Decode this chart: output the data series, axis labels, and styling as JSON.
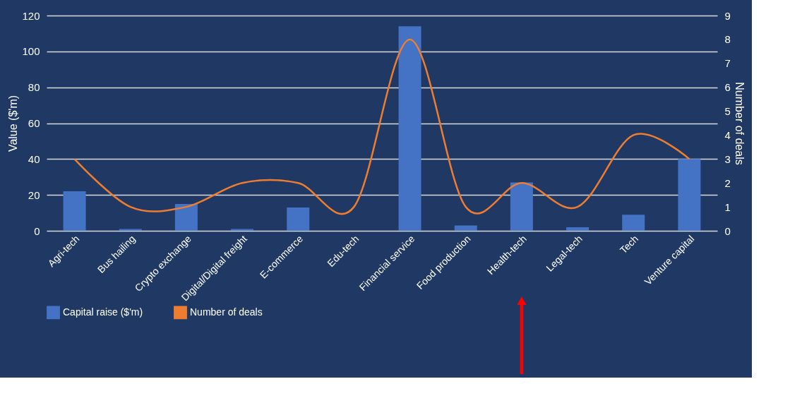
{
  "chart_data": {
    "type": "bar",
    "categories": [
      "Agri-tech",
      "Bus hailing",
      "Crypto exchange",
      "Digital/Digital freight",
      "E-commerce",
      "Edu-tech",
      "Financial service",
      "Food production",
      "Health-tech",
      "Legal-tech",
      "Tech",
      "Venture capital"
    ],
    "series": [
      {
        "name": "Capital raise ($'m)",
        "color": "#4472c4",
        "values": [
          22,
          1,
          15,
          1,
          13,
          0,
          114,
          3,
          27,
          2,
          9,
          40
        ]
      },
      {
        "name": "Number of deals",
        "color": "#ed7d31",
        "type": "line",
        "axis": "y2",
        "values": [
          3,
          1,
          1,
          2,
          2,
          1,
          8,
          1,
          2,
          1,
          4,
          3
        ]
      }
    ],
    "ylabel": "Value ($'m)",
    "y2label": "Number of deals",
    "ylim": [
      0,
      120
    ],
    "yticks": [
      0,
      20,
      40,
      60,
      80,
      100,
      120
    ],
    "y2lim": [
      0,
      9
    ],
    "y2ticks": [
      0,
      1,
      2,
      3,
      4,
      5,
      6,
      7,
      8,
      9
    ],
    "grid": "y",
    "legend": "bottom"
  }
}
